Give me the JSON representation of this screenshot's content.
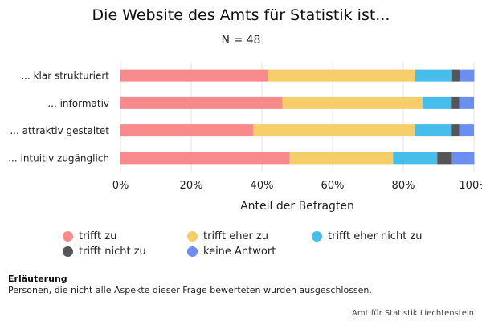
{
  "chart_data": {
    "type": "bar",
    "orientation": "horizontal",
    "stacked": true,
    "title": "Die Website des Amts für Statistik ist...",
    "subtitle": "N = 48",
    "xlabel": "Anteil der Befragten",
    "ylabel": "",
    "xlim": [
      0,
      100
    ],
    "x_ticks": [
      "0%",
      "20%",
      "40%",
      "60%",
      "80%",
      "100%"
    ],
    "x_tick_values": [
      0,
      20,
      40,
      60,
      80,
      100
    ],
    "grid": true,
    "legend_position": "bottom",
    "categories": [
      "... klar strukturiert",
      "... informativ",
      "... attraktiv gestaltet",
      "... intuitiv zugänglich"
    ],
    "series": [
      {
        "name": "trifft zu",
        "color": "#f78b8b",
        "values": [
          41.7,
          45.8,
          37.5,
          47.9
        ]
      },
      {
        "name": "trifft eher zu",
        "color": "#f5cd69",
        "values": [
          41.7,
          39.6,
          45.8,
          29.2
        ]
      },
      {
        "name": "trifft eher nicht zu",
        "color": "#46bdea",
        "values": [
          10.4,
          8.3,
          10.4,
          12.5
        ]
      },
      {
        "name": "trifft nicht zu",
        "color": "#555555",
        "values": [
          2.1,
          2.1,
          2.1,
          4.2
        ]
      },
      {
        "name": "keine Antwort",
        "color": "#6b8ef0",
        "values": [
          4.2,
          4.2,
          4.2,
          6.3
        ]
      }
    ]
  },
  "note": {
    "title": "Erläuterung",
    "text": "Personen, die nicht alle Aspekte dieser Frage bewerteten wurden ausgeschlossen."
  },
  "source": "Amt für Statistik Liechtenstein"
}
